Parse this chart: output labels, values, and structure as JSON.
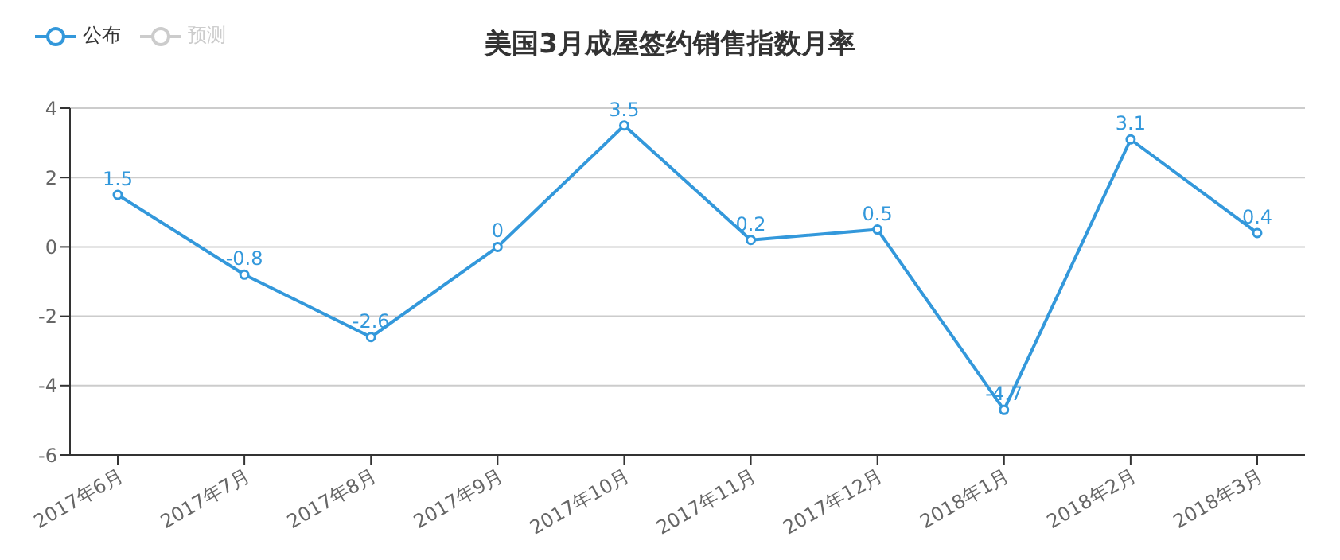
{
  "chart_data": {
    "type": "line",
    "title": "美国3月成屋签约销售指数月率",
    "categories": [
      "2017年6月",
      "2017年7月",
      "2017年8月",
      "2017年9月",
      "2017年10月",
      "2017年11月",
      "2017年12月",
      "2018年1月",
      "2018年2月",
      "2018年3月"
    ],
    "series": [
      {
        "name": "公布",
        "color": "#3398db",
        "values": [
          1.5,
          -0.8,
          -2.6,
          0,
          3.5,
          0.2,
          0.5,
          -4.7,
          3.1,
          0.4
        ]
      },
      {
        "name": "预测",
        "color": "#cccccc",
        "values": [
          null,
          null,
          null,
          null,
          null,
          null,
          null,
          null,
          null,
          null
        ]
      }
    ],
    "ylim": [
      -6,
      4
    ],
    "yticks": [
      -6,
      -4,
      -2,
      0,
      2,
      4
    ],
    "grid": "y",
    "legend": "top left",
    "marker": "circle",
    "line_style": "solid",
    "data_labels": true
  }
}
